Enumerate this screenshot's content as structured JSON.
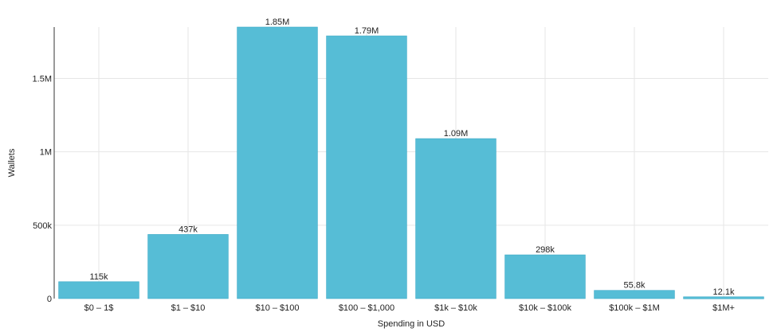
{
  "chart_data": {
    "type": "bar",
    "title": "",
    "xlabel": "Spending in USD",
    "ylabel": "Wallets",
    "categories": [
      "$0 – 1$",
      "$1 – $10",
      "$10 – $100",
      "$100 – $1,000",
      "$1k – $10k",
      "$10k – $100k",
      "$100k – $1M",
      "$1M+"
    ],
    "values": [
      115000,
      437000,
      1850000,
      1790000,
      1090000,
      298000,
      55800,
      12100
    ],
    "data_labels": [
      "115k",
      "437k",
      "1.85M",
      "1.79M",
      "1.09M",
      "298k",
      "55.8k",
      "12.1k"
    ],
    "ylim": [
      0,
      1850000
    ],
    "yticks": [
      {
        "value": 0,
        "label": "0"
      },
      {
        "value": 500000,
        "label": "500k"
      },
      {
        "value": 1000000,
        "label": "1M"
      },
      {
        "value": 1500000,
        "label": "1.5M"
      }
    ],
    "grid": true,
    "legend": "none",
    "colors": {
      "bar": "#56bdd6",
      "bar_edge": "#3aa9c6",
      "grid": "#e6e6e6",
      "axis": "#333333"
    }
  }
}
